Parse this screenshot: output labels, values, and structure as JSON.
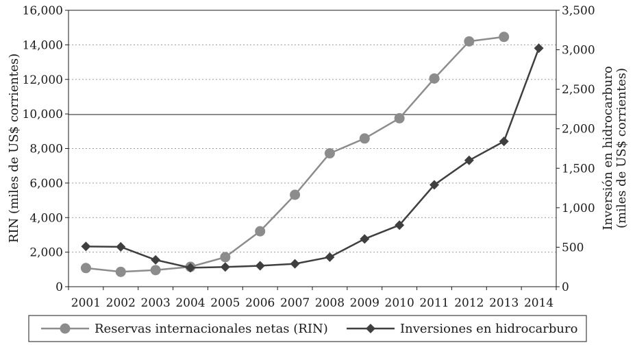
{
  "chart_data": {
    "type": "line",
    "categories": [
      "2001",
      "2002",
      "2003",
      "2004",
      "2005",
      "2006",
      "2007",
      "2008",
      "2009",
      "2010",
      "2011",
      "2012",
      "2013",
      "2014"
    ],
    "series": [
      {
        "name": "Reservas internacionales netas (RIN)",
        "axis": "left",
        "color": "#8c8c8c",
        "marker": "circle",
        "values": [
          1080,
          860,
          960,
          1150,
          1710,
          3210,
          5320,
          7720,
          8580,
          9750,
          12050,
          14200,
          14460,
          null
        ]
      },
      {
        "name": "Inversiones en hidrocarburo",
        "axis": "right",
        "color": "#3f3f3f",
        "marker": "diamond",
        "values": [
          510,
          505,
          340,
          240,
          250,
          265,
          290,
          375,
          605,
          780,
          1290,
          1600,
          1840,
          3020
        ]
      }
    ],
    "ylabel": "RIN (miles de US$ corrientes)",
    "y2label_line1": "Inversión en hidrocarburo",
    "y2label_line2": "(miles de US$ corrientes)",
    "ylim": [
      0,
      16000
    ],
    "y2lim": [
      0,
      3500
    ],
    "yticks": [
      "0",
      "2,000",
      "4,000",
      "6,000",
      "8,000",
      "10,000",
      "12,000",
      "14,000",
      "16,000"
    ],
    "y2ticks": [
      "0",
      "500",
      "1,000",
      "1,500",
      "2,000",
      "2,500",
      "3,000",
      "3,500"
    ],
    "grid": true,
    "legend_position": "bottom"
  }
}
